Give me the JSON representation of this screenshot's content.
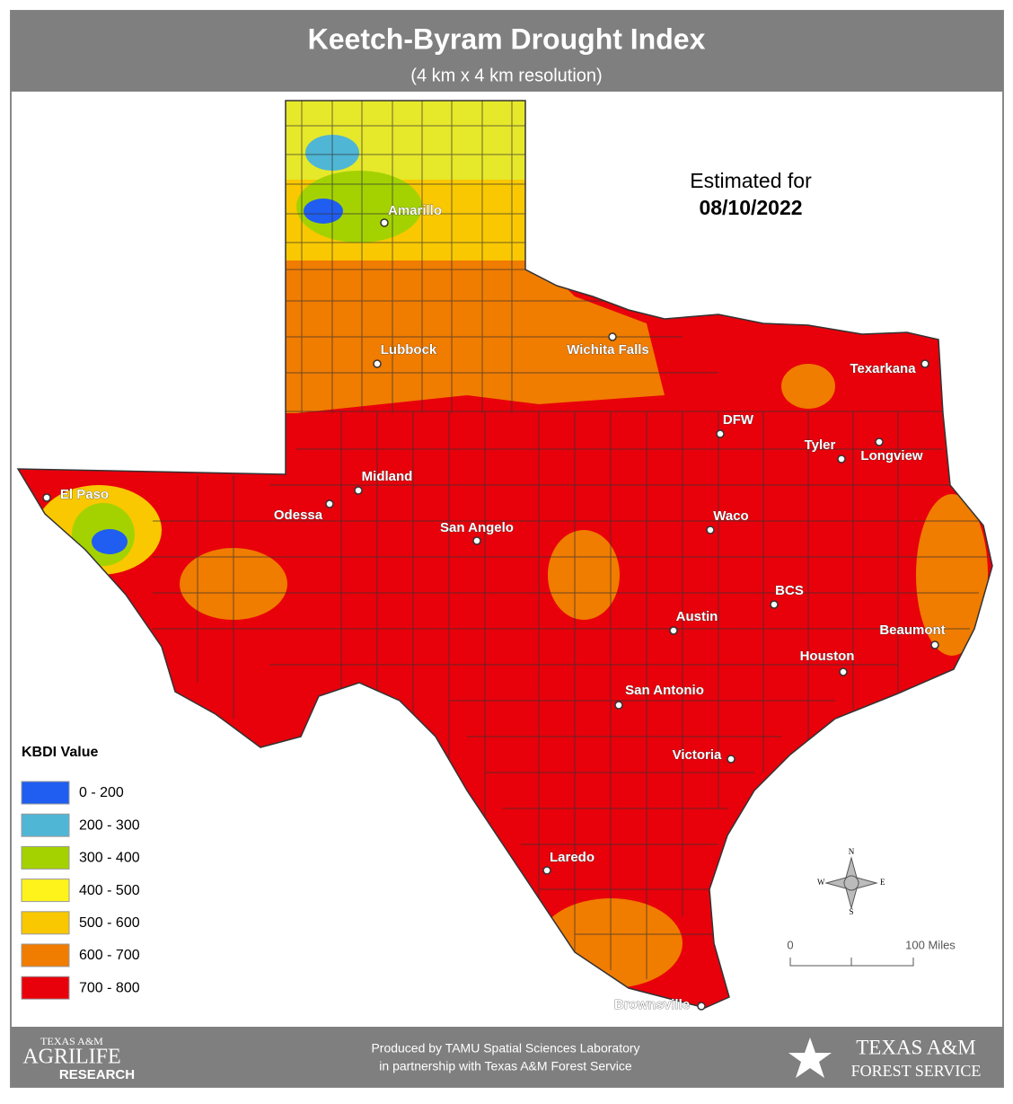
{
  "header": {
    "title": "Keetch-Byram Drought Index",
    "subtitle": "(4 km x 4 km resolution)"
  },
  "annotation": {
    "label": "Estimated for",
    "date": "08/10/2022"
  },
  "cities": [
    "Amarillo",
    "Lubbock",
    "Wichita Falls",
    "Texarkana",
    "DFW",
    "Tyler",
    "Longview",
    "El Paso",
    "Midland",
    "Odessa",
    "San Angelo",
    "Waco",
    "BCS",
    "Austin",
    "Beaumont",
    "Houston",
    "San Antonio",
    "Victoria",
    "Laredo",
    "Brownsville"
  ],
  "legend": {
    "title": "KBDI Value",
    "items": [
      {
        "label": "0 - 200",
        "color": "#1f5ef0"
      },
      {
        "label": "200 - 300",
        "color": "#4fb6d6"
      },
      {
        "label": "300 - 400",
        "color": "#a4d200"
      },
      {
        "label": "400 - 500",
        "color": "#fff31c"
      },
      {
        "label": "500 - 600",
        "color": "#f9c800"
      },
      {
        "label": "600 - 700",
        "color": "#f07c00"
      },
      {
        "label": "700 - 800",
        "color": "#e8000b"
      }
    ]
  },
  "compass": {
    "n": "N",
    "e": "E",
    "s": "S",
    "w": "W"
  },
  "scale": {
    "start": "0",
    "end": "100 Miles"
  },
  "footer": {
    "left_logo": [
      "TEXAS A&M",
      "AGRILIFE",
      "RESEARCH"
    ],
    "credit": [
      "Produced by TAMU Spatial Sciences Laboratory",
      "in partnership with Texas A&M Forest Service"
    ],
    "right_logo": [
      "TEXAS A&M",
      "FOREST SERVICE"
    ]
  }
}
